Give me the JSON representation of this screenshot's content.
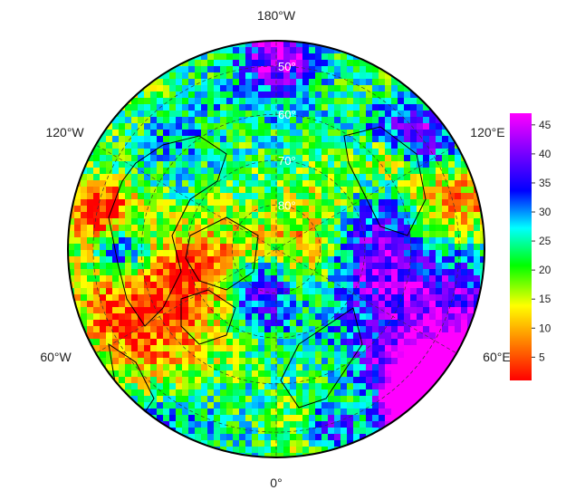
{
  "map": {
    "projection": "north-polar-stereographic",
    "longitude_labels": [
      {
        "id": "lon-180",
        "text": "180°W",
        "lon": 180
      },
      {
        "id": "lon-120w",
        "text": "120°W",
        "lon": -120
      },
      {
        "id": "lon-120e",
        "text": "120°E",
        "lon": 120
      },
      {
        "id": "lon-60w",
        "text": "60°W",
        "lon": -60
      },
      {
        "id": "lon-60e",
        "text": "60°E",
        "lon": 60
      },
      {
        "id": "lon-0",
        "text": "0°",
        "lon": 0
      }
    ],
    "latitude_labels": [
      {
        "id": "lat-50",
        "text": "50°",
        "lat": 50
      },
      {
        "id": "lat-60",
        "text": "60°",
        "lat": 60
      },
      {
        "id": "lat-70",
        "text": "70°",
        "lat": 70
      },
      {
        "id": "lat-80",
        "text": "80°",
        "lat": 80
      }
    ],
    "graticule": {
      "meridian_step_deg": 60,
      "parallels_deg": [
        50,
        60,
        70,
        80
      ],
      "style": "dashed"
    }
  },
  "colorbar": {
    "ticks": [
      "5",
      "10",
      "15",
      "20",
      "25",
      "30",
      "35",
      "40",
      "45"
    ],
    "tick_values": [
      5,
      10,
      15,
      20,
      25,
      30,
      35,
      40,
      45
    ],
    "range": [
      1,
      47
    ],
    "colors": [
      "#ff0000",
      "#ff7f00",
      "#ffff00",
      "#00ff00",
      "#00ffff",
      "#0000ff",
      "#8000ff",
      "#ff00ff"
    ]
  }
}
